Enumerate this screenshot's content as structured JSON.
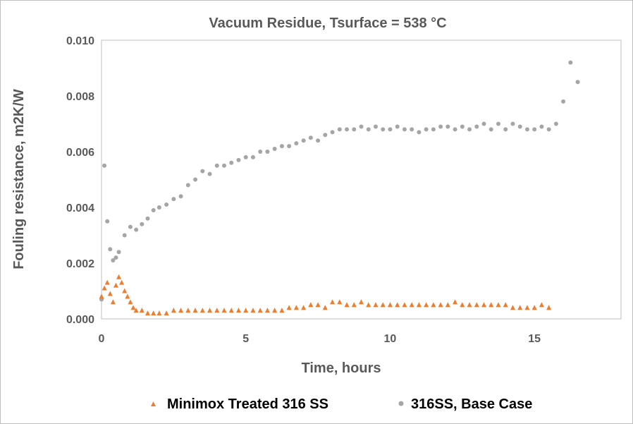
{
  "chart_data": {
    "type": "scatter",
    "title": "Vacuum Residue, Tsurface = 538 °C",
    "xlabel": "Time, hours",
    "ylabel": "Fouling resistance, m2K/W",
    "xlim": [
      0,
      18
    ],
    "ylim": [
      0,
      0.01
    ],
    "x_ticks": [
      "0",
      "5",
      "10",
      "15"
    ],
    "y_ticks": [
      "0.000",
      "0.002",
      "0.004",
      "0.006",
      "0.008",
      "0.010"
    ],
    "grid": false,
    "legend_position": "bottom",
    "series": [
      {
        "name": "Minimox Treated 316 SS",
        "color": "#ed7d31",
        "marker": "triangle",
        "x": [
          0.0,
          0.1,
          0.2,
          0.3,
          0.4,
          0.5,
          0.6,
          0.7,
          0.8,
          0.9,
          1.0,
          1.1,
          1.2,
          1.4,
          1.6,
          1.8,
          2.0,
          2.25,
          2.5,
          2.75,
          3.0,
          3.25,
          3.5,
          3.75,
          4.0,
          4.25,
          4.5,
          4.75,
          5.0,
          5.25,
          5.5,
          5.75,
          6.0,
          6.25,
          6.5,
          6.75,
          7.0,
          7.25,
          7.5,
          7.75,
          8.0,
          8.25,
          8.5,
          8.75,
          9.0,
          9.25,
          9.5,
          9.75,
          10.0,
          10.25,
          10.5,
          10.75,
          11.0,
          11.25,
          11.5,
          11.75,
          12.0,
          12.25,
          12.5,
          12.75,
          13.0,
          13.25,
          13.5,
          13.75,
          14.0,
          14.25,
          14.5,
          14.75,
          15.0,
          15.25,
          15.5
        ],
        "y": [
          0.0008,
          0.0011,
          0.0013,
          0.0009,
          0.0006,
          0.0012,
          0.0015,
          0.0013,
          0.001,
          0.0008,
          0.0006,
          0.0004,
          0.0003,
          0.0003,
          0.0002,
          0.0002,
          0.0002,
          0.0002,
          0.0003,
          0.0003,
          0.0003,
          0.0003,
          0.0003,
          0.0003,
          0.0003,
          0.0003,
          0.0003,
          0.0003,
          0.0003,
          0.0003,
          0.0003,
          0.0003,
          0.0003,
          0.0003,
          0.0004,
          0.0004,
          0.0004,
          0.0005,
          0.0005,
          0.0004,
          0.0006,
          0.0006,
          0.0005,
          0.0005,
          0.0006,
          0.0005,
          0.0005,
          0.0005,
          0.0005,
          0.0005,
          0.0005,
          0.0005,
          0.0005,
          0.0005,
          0.0005,
          0.0005,
          0.0005,
          0.0006,
          0.0005,
          0.0005,
          0.0005,
          0.0005,
          0.0005,
          0.0005,
          0.0005,
          0.0004,
          0.0004,
          0.0004,
          0.0004,
          0.0005,
          0.0004
        ]
      },
      {
        "name": "316SS, Base Case",
        "color": "#a5a5a5",
        "marker": "circle",
        "x": [
          0.0,
          0.1,
          0.2,
          0.3,
          0.4,
          0.5,
          0.6,
          0.8,
          1.0,
          1.2,
          1.4,
          1.6,
          1.8,
          2.0,
          2.25,
          2.5,
          2.75,
          3.0,
          3.25,
          3.5,
          3.75,
          4.0,
          4.25,
          4.5,
          4.75,
          5.0,
          5.25,
          5.5,
          5.75,
          6.0,
          6.25,
          6.5,
          6.75,
          7.0,
          7.25,
          7.5,
          7.75,
          8.0,
          8.25,
          8.5,
          8.75,
          9.0,
          9.25,
          9.5,
          9.75,
          10.0,
          10.25,
          10.5,
          10.75,
          11.0,
          11.25,
          11.5,
          11.75,
          12.0,
          12.25,
          12.5,
          12.75,
          13.0,
          13.25,
          13.5,
          13.75,
          14.0,
          14.25,
          14.5,
          14.75,
          15.0,
          15.25,
          15.5,
          15.75,
          16.0,
          16.25,
          16.5
        ],
        "y": [
          0.0007,
          0.0055,
          0.0035,
          0.0025,
          0.0021,
          0.0022,
          0.0024,
          0.003,
          0.0033,
          0.0032,
          0.0034,
          0.0036,
          0.0039,
          0.004,
          0.0041,
          0.0043,
          0.0044,
          0.0048,
          0.005,
          0.0053,
          0.0052,
          0.0055,
          0.0055,
          0.0056,
          0.0057,
          0.0058,
          0.0058,
          0.006,
          0.006,
          0.0061,
          0.0062,
          0.0062,
          0.0063,
          0.0064,
          0.0065,
          0.0064,
          0.0066,
          0.0067,
          0.0068,
          0.0068,
          0.0068,
          0.0069,
          0.0068,
          0.0069,
          0.0068,
          0.0068,
          0.0069,
          0.0068,
          0.0068,
          0.0067,
          0.0068,
          0.0068,
          0.0069,
          0.0069,
          0.0068,
          0.0069,
          0.0068,
          0.0069,
          0.007,
          0.0068,
          0.007,
          0.0068,
          0.007,
          0.0069,
          0.0068,
          0.0068,
          0.0069,
          0.0068,
          0.007,
          0.0078,
          0.0092,
          0.0085
        ]
      }
    ]
  }
}
